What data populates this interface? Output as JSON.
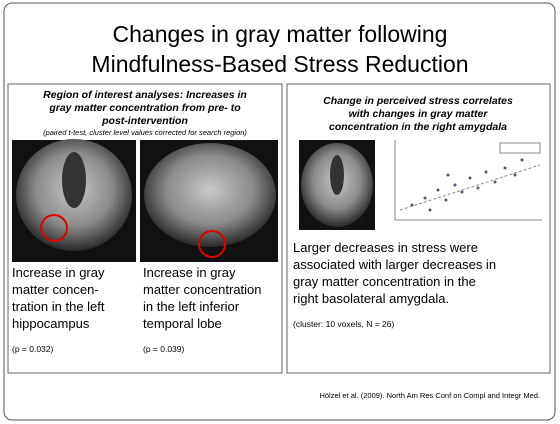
{
  "title": [
    "Changes in gray matter following",
    "Mindfulness-Based Stress Reduction"
  ],
  "left_panel": {
    "heading": [
      "Region of interest analyses: Increases in",
      "gray matter concentration from pre- to",
      "post-intervention"
    ],
    "note": "(paired t-test, cluster level values corrected for search region)",
    "captions": [
      {
        "lines": [
          "Increase in gray",
          "matter concen-",
          "tration in the left",
          "hippocampus"
        ],
        "p_value": "(p = 0.032)"
      },
      {
        "lines": [
          "Increase in gray",
          "matter concentration",
          "in the left inferior",
          "temporal lobe"
        ],
        "p_value": "(p = 0.039)"
      }
    ]
  },
  "right_panel": {
    "heading": [
      "Change in perceived stress correlates",
      "with changes in gray matter",
      "concentration in the right amygdala"
    ],
    "description": [
      "Larger decreases in stress were",
      "associated with larger decreases in",
      "gray matter concentration in the",
      "right basolateral amygdala."
    ],
    "note": "(cluster: 10 voxels, N = 26)"
  },
  "footer": "Hölzel et al. (2009). North Am Res Conf on Compl and Integr Med."
}
